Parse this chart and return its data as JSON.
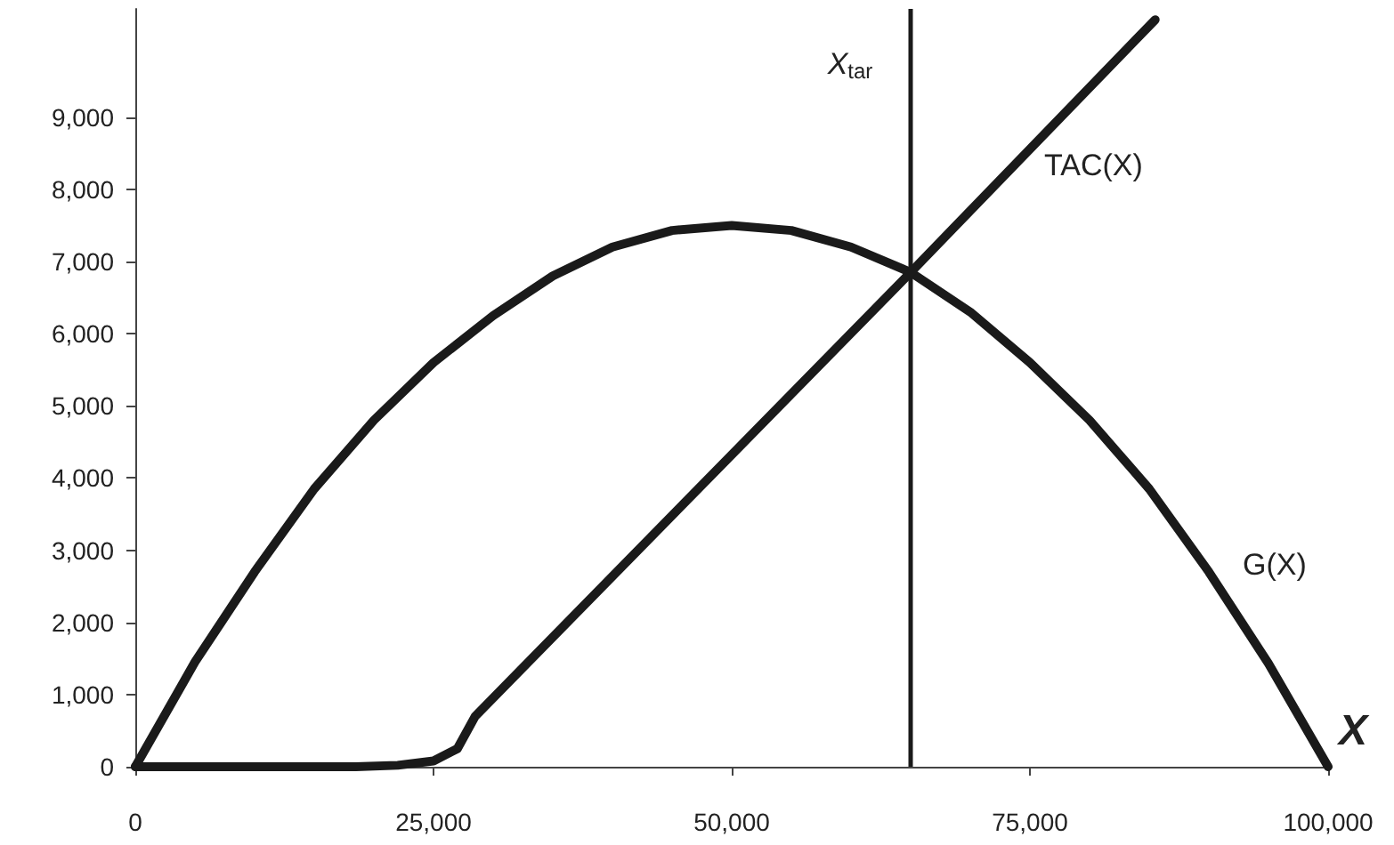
{
  "chart_data": {
    "type": "line",
    "xlabel": "X",
    "xlim": [
      0,
      100000
    ],
    "xticks": [
      0,
      {
        "value": 25000,
        "label": "25,000"
      },
      {
        "value": 50000,
        "label": "50,000"
      },
      {
        "value": 75000,
        "label": "75,000"
      },
      {
        "value": 100000,
        "label": "100,000"
      }
    ],
    "ylim": [
      0,
      10500
    ],
    "yticks": [
      0,
      {
        "value": 1000,
        "label": "1,000"
      },
      {
        "value": 2000,
        "label": "2,000"
      },
      {
        "value": 3000,
        "label": "3,000"
      },
      {
        "value": 4000,
        "label": "4,000"
      },
      {
        "value": 5000,
        "label": "5,000"
      },
      {
        "value": 6000,
        "label": "6,000"
      },
      {
        "value": 7000,
        "label": "7,000"
      },
      {
        "value": 8000,
        "label": "8,000"
      },
      {
        "value": 9000,
        "label": "9,000"
      }
    ],
    "series": [
      {
        "name": "G(X)",
        "color": "#1a1a1a",
        "x": [
          0,
          5000,
          10000,
          15000,
          20000,
          25000,
          30000,
          35000,
          40000,
          45000,
          50000,
          55000,
          60000,
          65000,
          70000,
          75000,
          80000,
          85000,
          90000,
          95000,
          100000
        ],
        "values": [
          0,
          1450,
          2700,
          3850,
          4800,
          5600,
          6250,
          6800,
          7200,
          7430,
          7500,
          7430,
          7200,
          6850,
          6300,
          5600,
          4800,
          3850,
          2700,
          1430,
          0
        ]
      },
      {
        "name": "TAC(X)",
        "color": "#1a1a1a",
        "x": [
          0,
          10000,
          18500,
          22000,
          25000,
          27000,
          28500,
          65000,
          85500
        ],
        "values": [
          0,
          0,
          0,
          20,
          80,
          250,
          700,
          6850,
          10350
        ]
      }
    ],
    "ref_lines": [
      {
        "axis": "x",
        "value": 65000,
        "label": "X$_{tar}$",
        "color": "#1a1a1a",
        "line_style": "solid"
      }
    ],
    "grid": false,
    "legend": false,
    "marker": "none",
    "line_style": "solid"
  }
}
